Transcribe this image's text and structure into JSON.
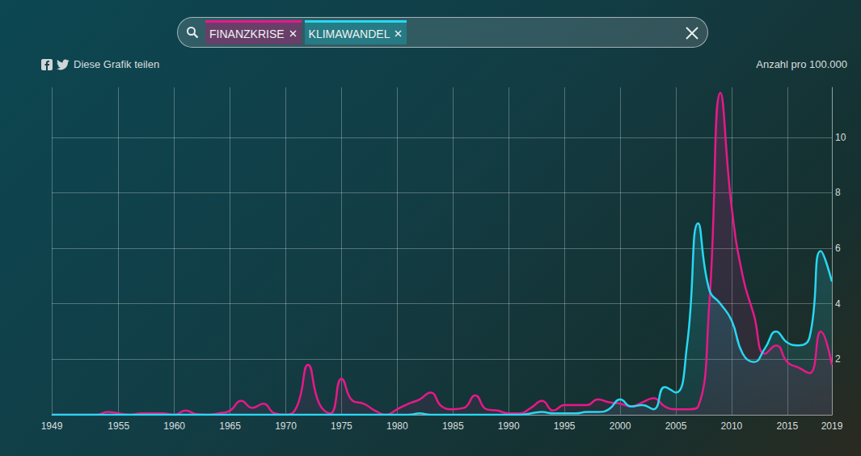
{
  "chart_data": {
    "type": "line",
    "annotations": [
      "Diese Grafik teilen"
    ],
    "ylabel": "Anzahl pro 100.000",
    "x": [
      1949,
      1950,
      1951,
      1952,
      1953,
      1954,
      1955,
      1956,
      1957,
      1958,
      1959,
      1960,
      1961,
      1962,
      1963,
      1964,
      1965,
      1966,
      1967,
      1968,
      1969,
      1970,
      1971,
      1972,
      1973,
      1974,
      1975,
      1976,
      1977,
      1978,
      1979,
      1980,
      1981,
      1982,
      1983,
      1984,
      1985,
      1986,
      1987,
      1988,
      1989,
      1990,
      1991,
      1992,
      1993,
      1994,
      1995,
      1996,
      1997,
      1998,
      1999,
      2000,
      2001,
      2002,
      2003,
      2004,
      2005,
      2006,
      2007,
      2008,
      2009,
      2010,
      2011,
      2012,
      2013,
      2014,
      2015,
      2016,
      2017,
      2018,
      2019
    ],
    "series": [
      {
        "name": "FINANZKRISE",
        "color": "#e8188a",
        "values": [
          0,
          0,
          0,
          0,
          0,
          0.1,
          0.05,
          0,
          0.05,
          0.05,
          0.05,
          0,
          0.15,
          0.02,
          0,
          0.05,
          0.15,
          0.5,
          0.25,
          0.4,
          0.05,
          0,
          0.3,
          1.8,
          0.4,
          0.05,
          1.3,
          0.5,
          0.4,
          0.15,
          0,
          0.2,
          0.4,
          0.55,
          0.8,
          0.3,
          0.2,
          0.25,
          0.7,
          0.2,
          0.15,
          0.05,
          0.05,
          0.25,
          0.5,
          0.15,
          0.35,
          0.35,
          0.35,
          0.55,
          0.45,
          0.4,
          0.3,
          0.45,
          0.6,
          0.3,
          0.2,
          0.2,
          0.3,
          4.0,
          11.6,
          7.5,
          5.0,
          3.6,
          2.2,
          2.5,
          1.9,
          1.7,
          1.5,
          3.0,
          1.8
        ]
      },
      {
        "name": "KLIMAWANDEL",
        "color": "#27d8f2",
        "values": [
          0,
          0,
          0,
          0,
          0,
          0,
          0,
          0,
          0,
          0,
          0,
          0,
          0,
          0,
          0,
          0,
          0,
          0,
          0,
          0,
          0,
          0,
          0,
          0,
          0,
          0,
          0,
          0,
          0,
          0,
          0,
          0,
          0,
          0.05,
          0,
          0,
          0,
          0,
          0,
          0,
          0,
          0,
          0,
          0.05,
          0.1,
          0.05,
          0.05,
          0.05,
          0.1,
          0.1,
          0.2,
          0.55,
          0.3,
          0.35,
          0.2,
          1.0,
          0.8,
          2.5,
          6.9,
          4.5,
          4.0,
          3.4,
          2.2,
          1.9,
          2.4,
          3.0,
          2.6,
          2.5,
          2.8,
          5.9,
          4.8
        ]
      }
    ],
    "xlim": [
      1949,
      2019
    ],
    "xticks": [
      1949,
      1955,
      1960,
      1965,
      1970,
      1975,
      1980,
      1985,
      1990,
      1995,
      2000,
      2005,
      2010,
      2015,
      2019
    ],
    "ylim": [
      0,
      11.8
    ],
    "yticks": [
      2,
      4,
      6,
      8,
      10
    ],
    "grid": true
  }
}
